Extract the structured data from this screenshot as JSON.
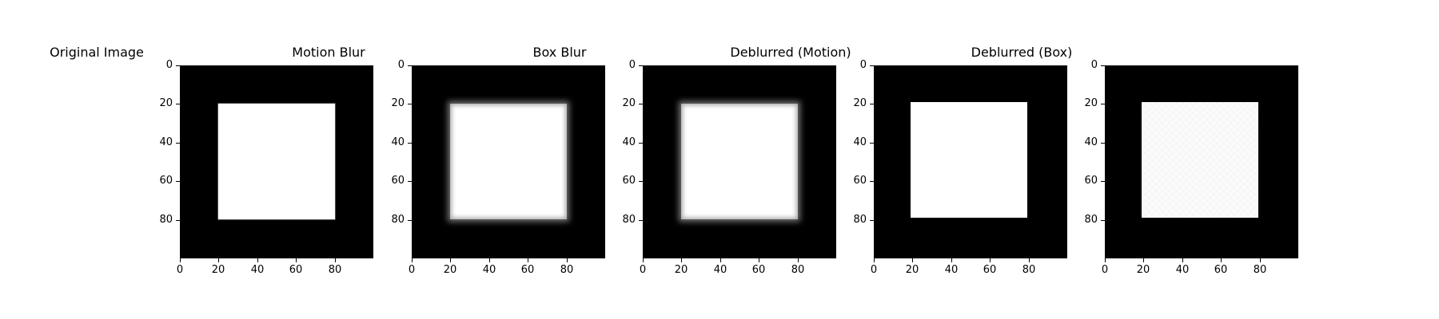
{
  "figure": {
    "panels": [
      {
        "id": "original",
        "title": "Original Image",
        "style": "orig"
      },
      {
        "id": "motion",
        "title": "Motion Blur",
        "style": "motion"
      },
      {
        "id": "box",
        "title": "Box Blur",
        "style": "box"
      },
      {
        "id": "deblurred-motion",
        "title": "Deblurred (Motion)",
        "style": "dmotion"
      },
      {
        "id": "deblurred-box",
        "title": "Deblurred (Box)",
        "style": "dbox"
      }
    ],
    "yticks": [
      "0",
      "20",
      "40",
      "60",
      "80"
    ],
    "xticks": [
      "0",
      "20",
      "40",
      "60",
      "80"
    ],
    "colors": {
      "background": "#000000",
      "square": "#ffffff"
    }
  }
}
